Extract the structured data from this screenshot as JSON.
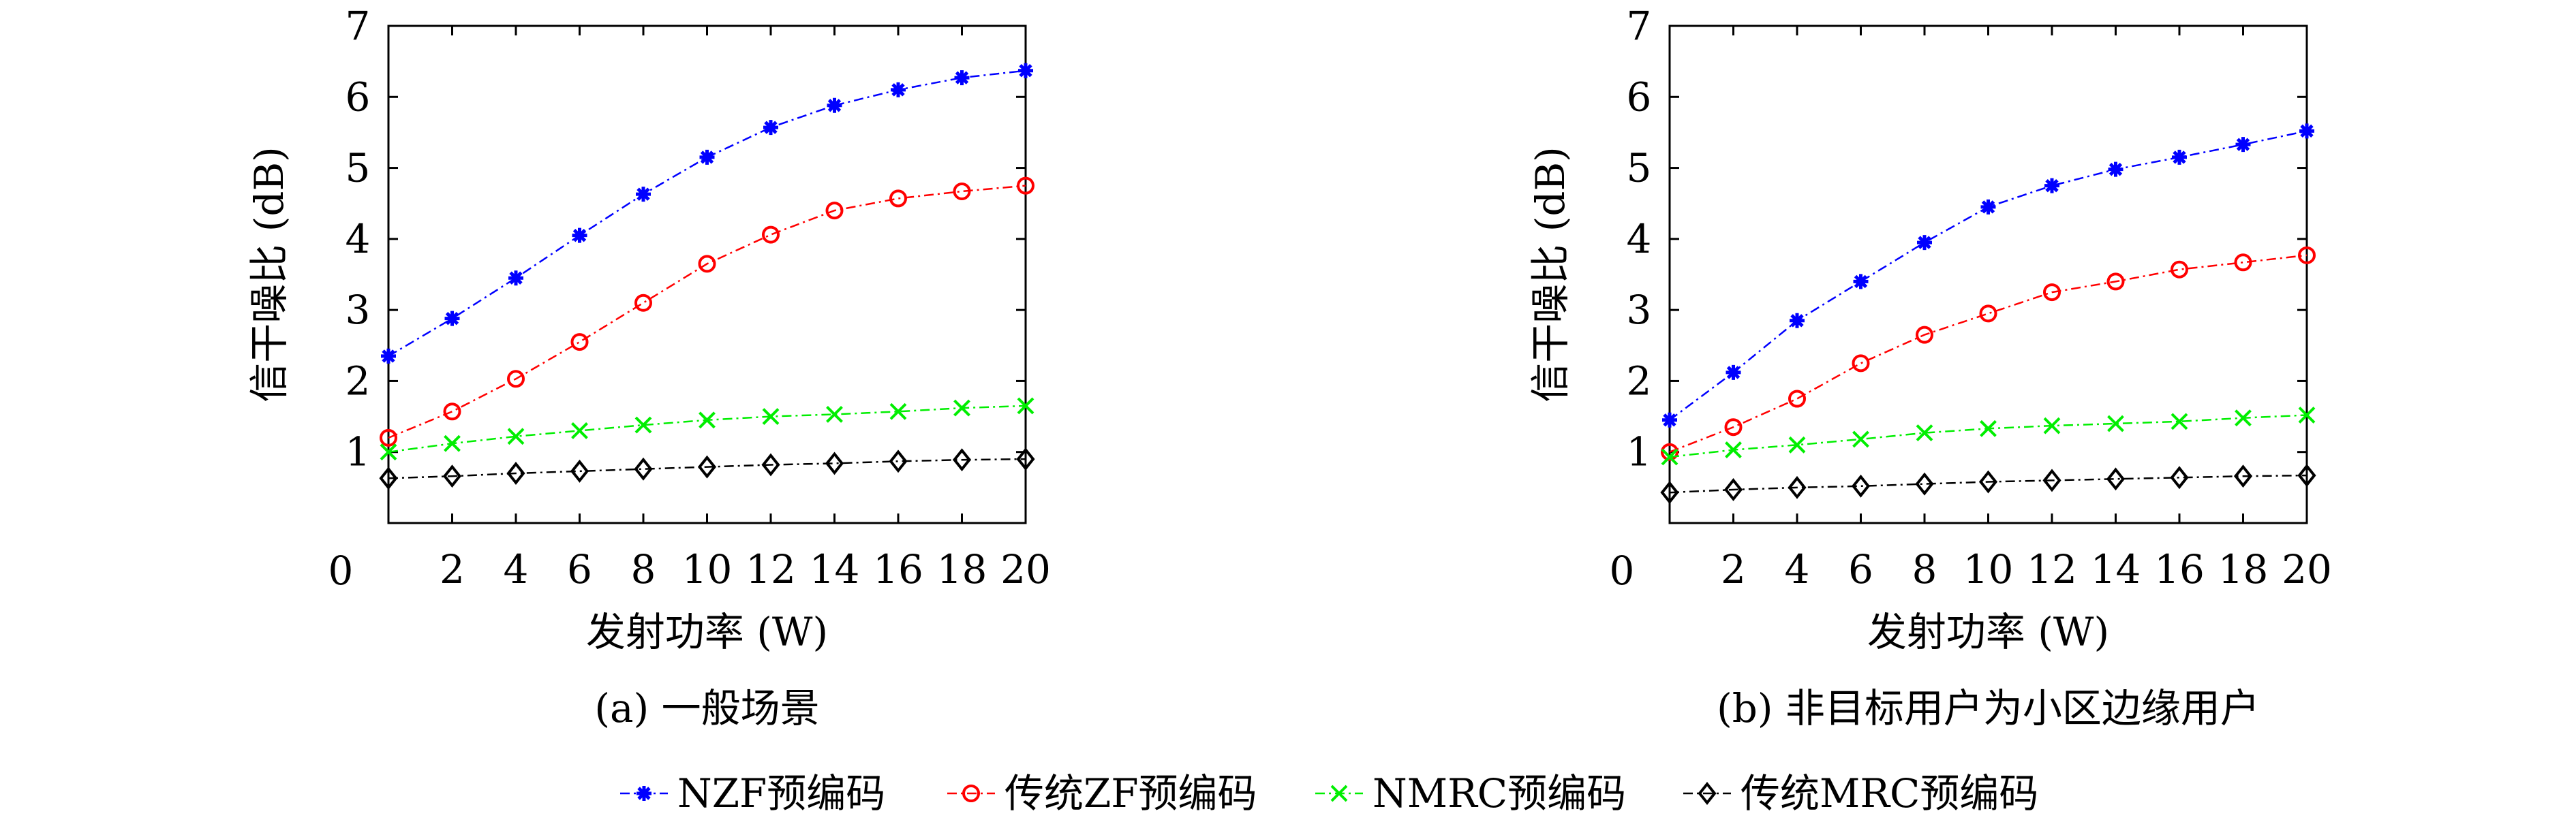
{
  "chart_data": [
    {
      "type": "line",
      "caption": "(a) 一般场景",
      "xlabel": "发射功率 (W)",
      "ylabel": "信干噪比 (dB)",
      "xlim": [
        0,
        20
      ],
      "ylim": [
        0,
        7
      ],
      "xticks": [
        "0",
        "2",
        "4",
        "6",
        "8",
        "10",
        "12",
        "14",
        "16",
        "18",
        "20"
      ],
      "yticks": [
        "1",
        "2",
        "3",
        "4",
        "5",
        "6",
        "7"
      ],
      "x": [
        0,
        2,
        4,
        6,
        8,
        10,
        12,
        14,
        16,
        18,
        20
      ],
      "series": [
        {
          "name": "NZF预编码",
          "values": [
            2.35,
            2.88,
            3.45,
            4.05,
            4.63,
            5.15,
            5.57,
            5.88,
            6.1,
            6.27,
            6.37
          ]
        },
        {
          "name": "传统ZF预编码",
          "values": [
            1.2,
            1.57,
            2.03,
            2.55,
            3.1,
            3.65,
            4.06,
            4.4,
            4.57,
            4.67,
            4.75
          ]
        },
        {
          "name": "NMRC预编码",
          "values": [
            1.0,
            1.12,
            1.22,
            1.3,
            1.38,
            1.45,
            1.5,
            1.53,
            1.57,
            1.62,
            1.65
          ]
        },
        {
          "name": "传统MRC预编码",
          "values": [
            0.63,
            0.66,
            0.7,
            0.73,
            0.76,
            0.79,
            0.82,
            0.84,
            0.87,
            0.89,
            0.9
          ]
        }
      ]
    },
    {
      "type": "line",
      "caption": "(b) 非目标用户为小区边缘用户",
      "xlabel": "发射功率 (W)",
      "ylabel": "信干噪比 (dB)",
      "xlim": [
        0,
        20
      ],
      "ylim": [
        0,
        7
      ],
      "xticks": [
        "0",
        "2",
        "4",
        "6",
        "8",
        "10",
        "12",
        "14",
        "16",
        "18",
        "20"
      ],
      "yticks": [
        "1",
        "2",
        "3",
        "4",
        "5",
        "6",
        "7"
      ],
      "x": [
        0,
        2,
        4,
        6,
        8,
        10,
        12,
        14,
        16,
        18,
        20
      ],
      "series": [
        {
          "name": "NZF预编码",
          "values": [
            1.45,
            2.12,
            2.85,
            3.4,
            3.95,
            4.45,
            4.75,
            4.98,
            5.15,
            5.33,
            5.52
          ]
        },
        {
          "name": "传统ZF预编码",
          "values": [
            1.0,
            1.35,
            1.75,
            2.25,
            2.65,
            2.95,
            3.25,
            3.4,
            3.57,
            3.67,
            3.77
          ]
        },
        {
          "name": "NMRC预编码",
          "values": [
            0.93,
            1.03,
            1.1,
            1.18,
            1.27,
            1.33,
            1.37,
            1.4,
            1.43,
            1.48,
            1.52
          ]
        },
        {
          "name": "传统MRC预编码",
          "values": [
            0.43,
            0.47,
            0.5,
            0.52,
            0.55,
            0.58,
            0.6,
            0.62,
            0.64,
            0.66,
            0.67
          ]
        }
      ]
    }
  ],
  "legend": {
    "position": "bottom",
    "items": [
      {
        "label": "NZF预编码",
        "color": "#0000ff",
        "marker": "star"
      },
      {
        "label": "传统ZF预编码",
        "color": "#ff0000",
        "marker": "circle"
      },
      {
        "label": "NMRC预编码",
        "color": "#00ee00",
        "marker": "cross"
      },
      {
        "label": "传统MRC预编码",
        "color": "#000000",
        "marker": "diamond"
      }
    ]
  }
}
